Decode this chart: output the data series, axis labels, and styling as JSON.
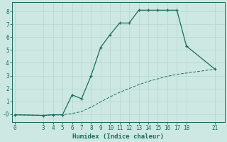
{
  "xlabel": "Humidex (Indice chaleur)",
  "bg_color": "#cde8e2",
  "grid_color": "#b8d8d0",
  "line_color": "#1a6b5e",
  "line1_x": [
    0,
    3,
    4,
    5,
    6,
    7,
    8,
    9,
    10,
    11,
    12,
    13,
    14,
    15,
    16,
    17,
    18,
    21
  ],
  "line1_y": [
    -0.05,
    -0.1,
    -0.05,
    -0.05,
    1.5,
    1.2,
    3.0,
    5.2,
    6.2,
    7.1,
    7.1,
    8.1,
    8.1,
    8.1,
    8.1,
    8.1,
    5.3,
    3.5
  ],
  "line2_x": [
    0,
    3,
    4,
    5,
    6,
    7,
    8,
    9,
    10,
    11,
    12,
    13,
    14,
    15,
    16,
    17,
    18,
    21
  ],
  "line2_y": [
    -0.05,
    -0.1,
    -0.05,
    -0.05,
    0.05,
    0.2,
    0.55,
    0.95,
    1.35,
    1.7,
    2.0,
    2.3,
    2.55,
    2.75,
    2.95,
    3.1,
    3.2,
    3.5
  ],
  "xticks": [
    0,
    3,
    4,
    5,
    6,
    7,
    8,
    9,
    10,
    11,
    12,
    13,
    14,
    15,
    16,
    17,
    18,
    21
  ],
  "yticks": [
    0,
    1,
    2,
    3,
    4,
    5,
    6,
    7,
    8
  ],
  "ytick_labels": [
    "-0",
    "1",
    "2",
    "3",
    "4",
    "5",
    "6",
    "7",
    "8"
  ],
  "ylim": [
    -0.6,
    8.7
  ],
  "xlim": [
    -0.3,
    22.0
  ]
}
